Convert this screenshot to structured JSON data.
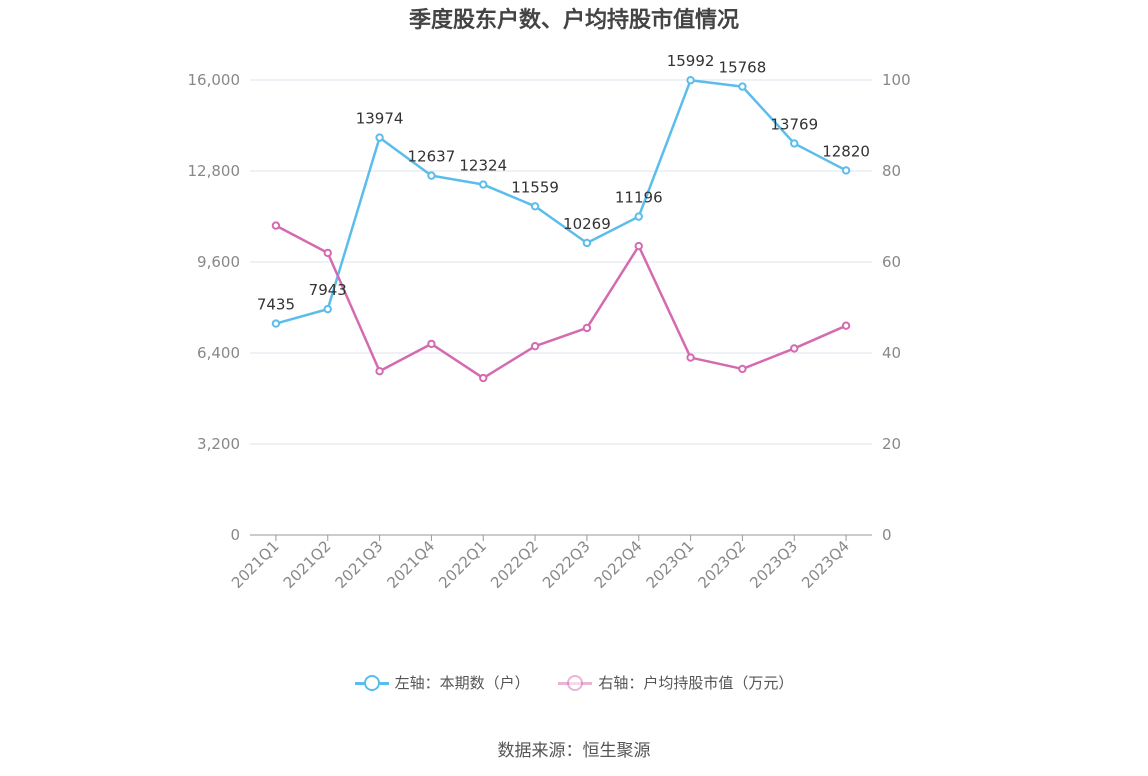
{
  "chart_data": {
    "type": "line",
    "title": "季度股东户数、户均持股市值情况",
    "categories": [
      "2021Q1",
      "2021Q2",
      "2021Q3",
      "2021Q4",
      "2022Q1",
      "2022Q2",
      "2022Q3",
      "2022Q4",
      "2023Q1",
      "2023Q2",
      "2023Q3",
      "2023Q4"
    ],
    "series": [
      {
        "name": "左轴：本期数（户）",
        "axis": "left",
        "color": "#5bbdeb",
        "values": [
          7435,
          7943,
          13974,
          12637,
          12324,
          11559,
          10269,
          11196,
          15992,
          15768,
          13769,
          12820
        ],
        "show_labels": true
      },
      {
        "name": "右轴：户均持股市值（万元）",
        "axis": "right",
        "color": "#d46bb0",
        "values": [
          68,
          62,
          36,
          42,
          34.5,
          41.5,
          45.5,
          63.5,
          39,
          36.5,
          41,
          46
        ],
        "show_labels": false
      }
    ],
    "y_left": {
      "min": 0,
      "max": 16000,
      "ticks": [
        0,
        3200,
        6400,
        9600,
        12800,
        16000
      ],
      "tick_labels": [
        "0",
        "3,200",
        "6,400",
        "9,600",
        "12,800",
        "16,000"
      ]
    },
    "y_right": {
      "min": 0,
      "max": 100,
      "ticks": [
        0,
        20,
        40,
        60,
        80,
        100
      ],
      "tick_labels": [
        "0",
        "20",
        "40",
        "60",
        "80",
        "100"
      ]
    },
    "grid": true,
    "legend_position": "bottom"
  },
  "source": "数据来源：恒生聚源"
}
